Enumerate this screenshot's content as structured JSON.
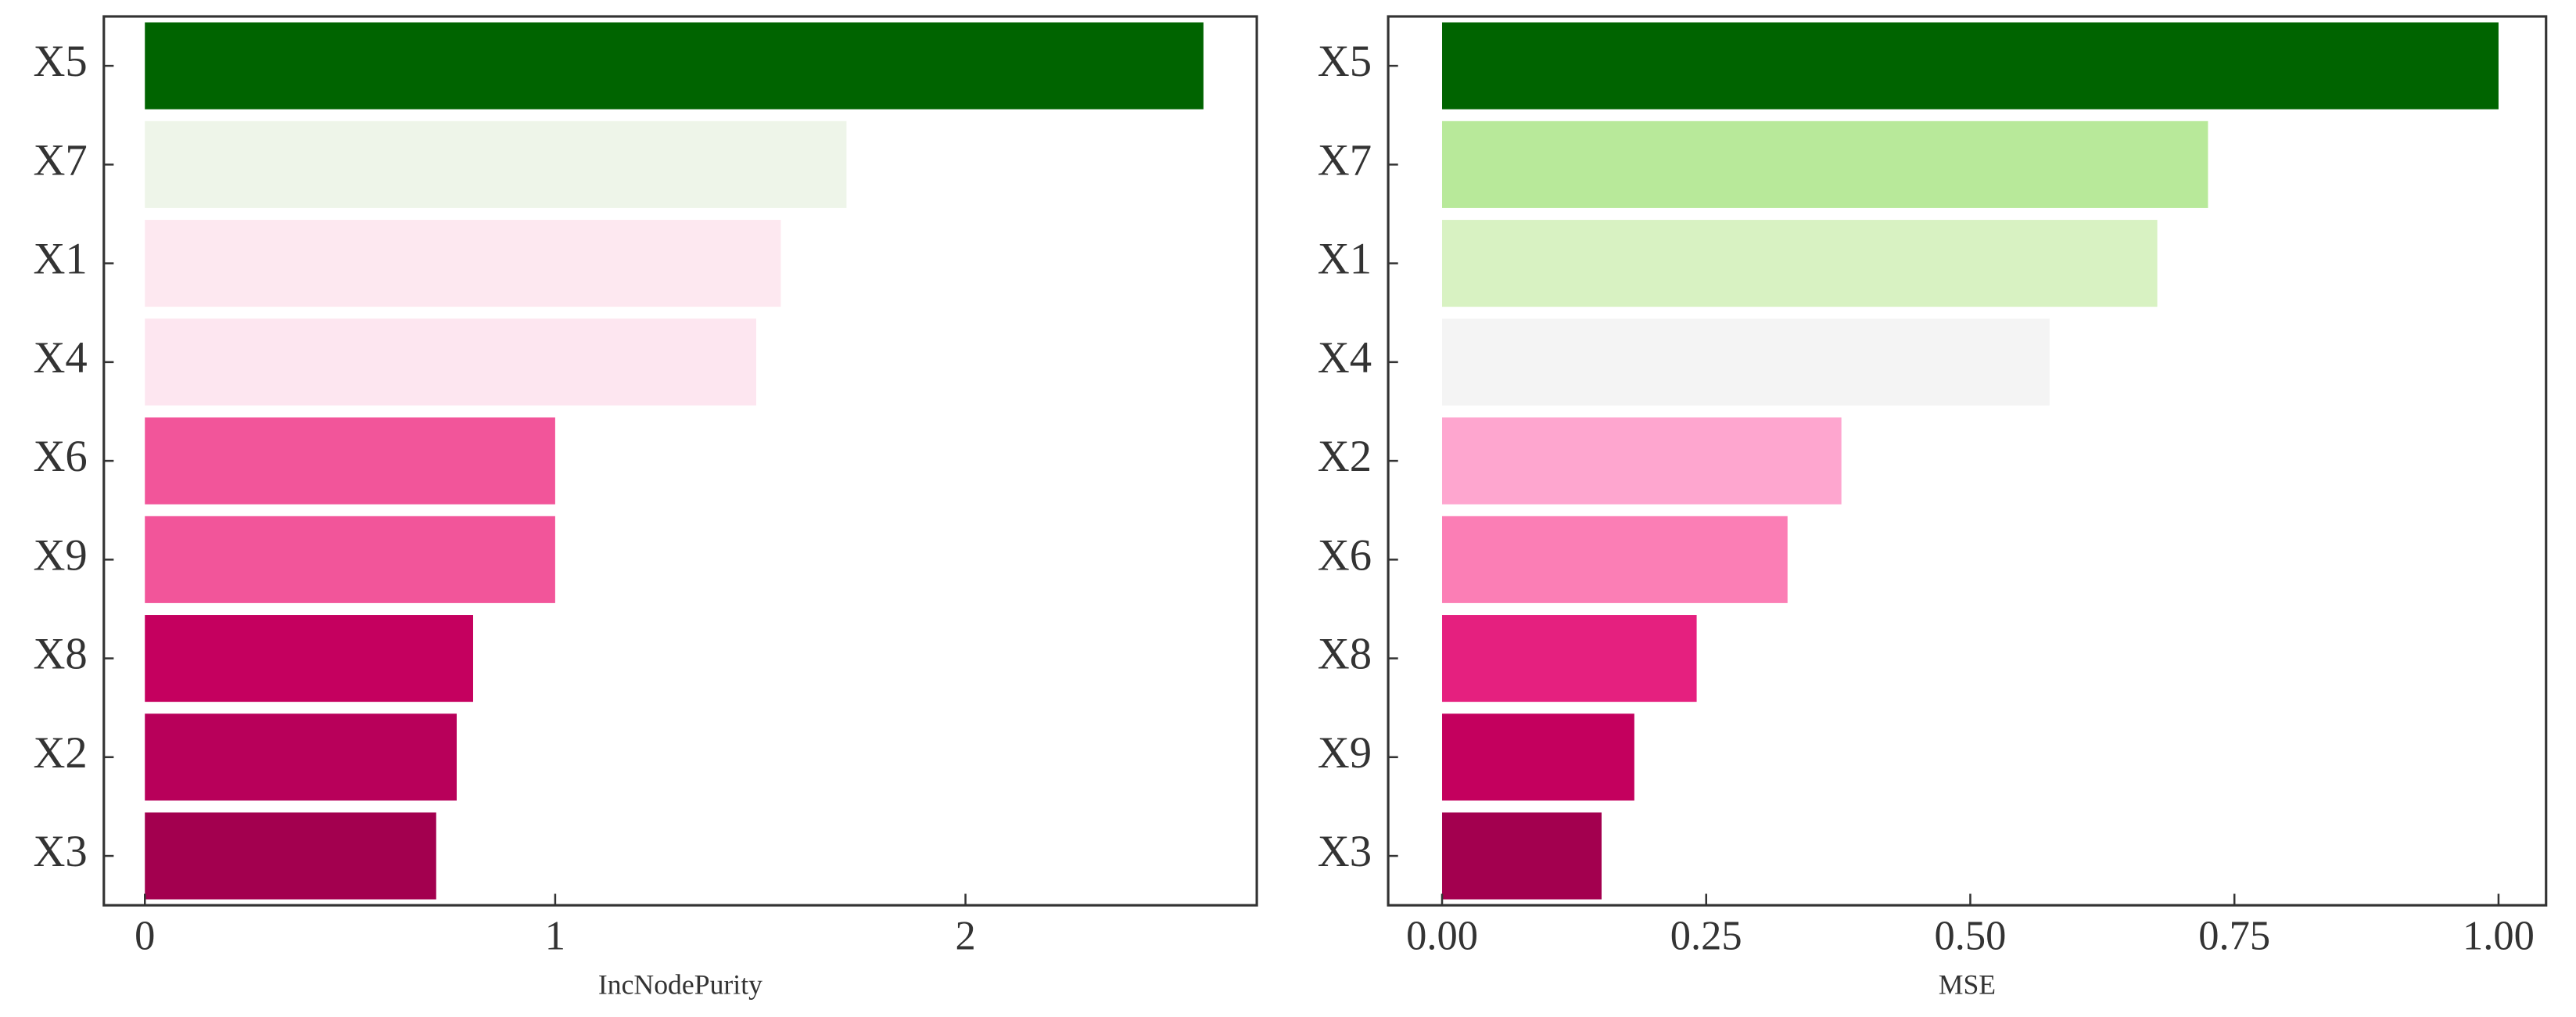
{
  "chart_data": [
    {
      "type": "bar",
      "orientation": "horizontal",
      "categories": [
        "X5",
        "X7",
        "X1",
        "X4",
        "X6",
        "X9",
        "X8",
        "X2",
        "X3"
      ],
      "values": [
        2.58,
        1.71,
        1.55,
        1.49,
        1.0,
        1.0,
        0.8,
        0.76,
        0.71
      ],
      "colors": [
        "#006400",
        "#eef5e9",
        "#fde8f0",
        "#fde6f0",
        "#f2559a",
        "#f2559a",
        "#c5005f",
        "#b8005a",
        "#a3004f"
      ],
      "xlim": [
        -0.1,
        2.71
      ],
      "xticks": [
        0,
        1,
        2
      ],
      "xlabel": "IncNodePurity"
    },
    {
      "type": "bar",
      "orientation": "horizontal",
      "categories": [
        "X5",
        "X7",
        "X1",
        "X4",
        "X2",
        "X6",
        "X8",
        "X9",
        "X3"
      ],
      "values": [
        1.0,
        0.725,
        0.677,
        0.575,
        0.378,
        0.327,
        0.241,
        0.182,
        0.151
      ],
      "colors": [
        "#006400",
        "#b8e99a",
        "#d8f2c2",
        "#f4f4f4",
        "#fea6cf",
        "#fb7eb5",
        "#e5207f",
        "#c4005e",
        "#a3004f"
      ],
      "xlim": [
        -0.051,
        1.045
      ],
      "xticks": [
        {
          "value": 0,
          "label": "0.00"
        },
        {
          "value": 0.25,
          "label": "0.25"
        },
        {
          "value": 0.5,
          "label": "0.50"
        },
        {
          "value": 0.75,
          "label": "0.75"
        },
        {
          "value": 1,
          "label": "1.00"
        }
      ],
      "xlabel": "MSE"
    }
  ]
}
